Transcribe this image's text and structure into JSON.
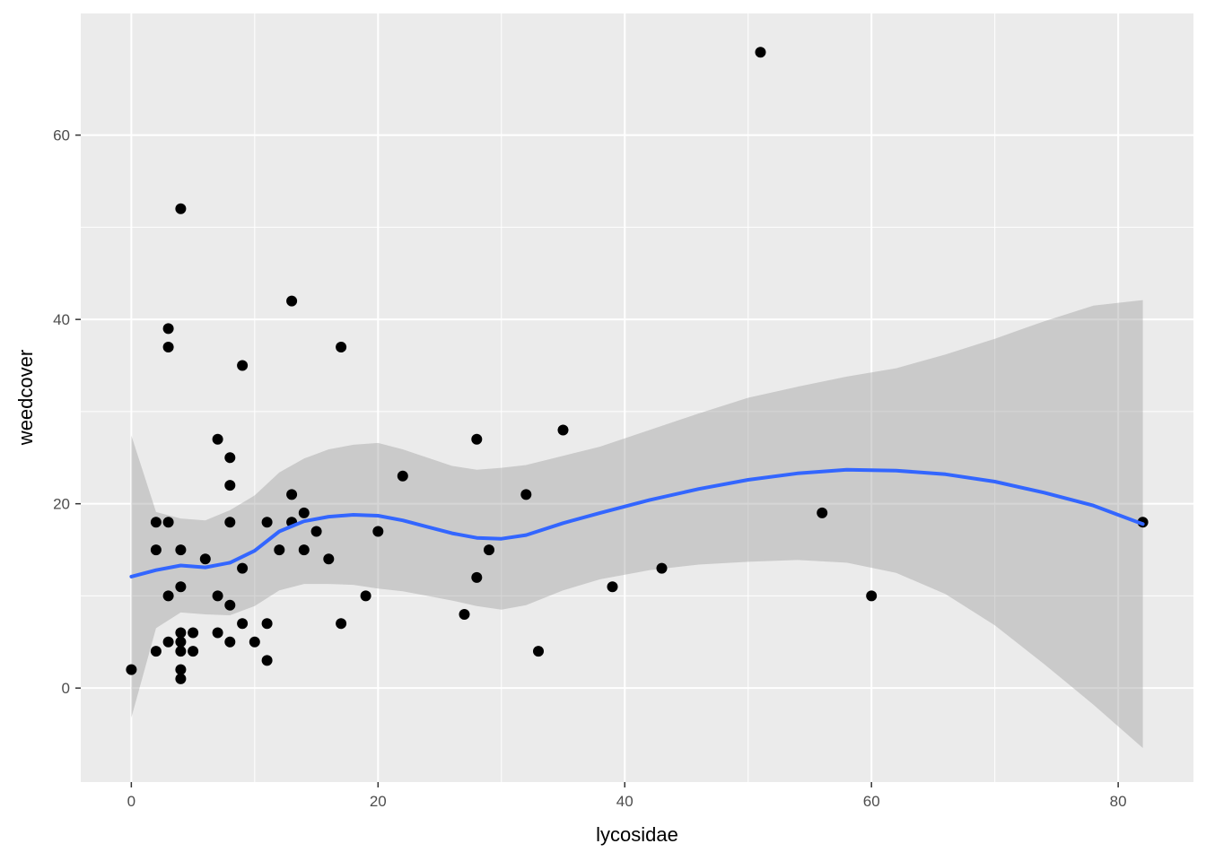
{
  "chart_data": {
    "type": "scatter",
    "xlabel": "lycosidae",
    "ylabel": "weedcover",
    "xlim": [
      -4.1,
      86.1
    ],
    "ylim": [
      -10.2,
      73.2
    ],
    "x_ticks": [
      0,
      20,
      40,
      60,
      80
    ],
    "y_ticks": [
      0,
      20,
      40,
      60
    ],
    "x_tick_labels": [
      "0",
      "20",
      "40",
      "60",
      "80"
    ],
    "y_tick_labels": [
      "0",
      "20",
      "40",
      "60"
    ],
    "grid": true,
    "colors": {
      "panel": "#ebebeb",
      "grid": "#ffffff",
      "points": "#000000",
      "smooth_line": "#3366ff",
      "ribbon": "#999999"
    },
    "points": [
      [
        0,
        2
      ],
      [
        2,
        4
      ],
      [
        2,
        15
      ],
      [
        2,
        18
      ],
      [
        3,
        5
      ],
      [
        3,
        10
      ],
      [
        3,
        18
      ],
      [
        3,
        37
      ],
      [
        3,
        39
      ],
      [
        4,
        1
      ],
      [
        4,
        2
      ],
      [
        4,
        4
      ],
      [
        4,
        5
      ],
      [
        4,
        6
      ],
      [
        4,
        11
      ],
      [
        4,
        15
      ],
      [
        4,
        52
      ],
      [
        5,
        4
      ],
      [
        5,
        6
      ],
      [
        6,
        14
      ],
      [
        7,
        6
      ],
      [
        7,
        10
      ],
      [
        7,
        27
      ],
      [
        8,
        5
      ],
      [
        8,
        9
      ],
      [
        8,
        18
      ],
      [
        8,
        22
      ],
      [
        8,
        25
      ],
      [
        9,
        7
      ],
      [
        9,
        13
      ],
      [
        9,
        35
      ],
      [
        10,
        5
      ],
      [
        11,
        3
      ],
      [
        11,
        7
      ],
      [
        11,
        18
      ],
      [
        12,
        15
      ],
      [
        13,
        18
      ],
      [
        13,
        21
      ],
      [
        13,
        42
      ],
      [
        14,
        15
      ],
      [
        14,
        19
      ],
      [
        15,
        17
      ],
      [
        16,
        14
      ],
      [
        17,
        7
      ],
      [
        17,
        37
      ],
      [
        19,
        10
      ],
      [
        20,
        17
      ],
      [
        22,
        23
      ],
      [
        27,
        8
      ],
      [
        28,
        12
      ],
      [
        28,
        27
      ],
      [
        29,
        15
      ],
      [
        32,
        21
      ],
      [
        33,
        4
      ],
      [
        35,
        28
      ],
      [
        39,
        11
      ],
      [
        43,
        13
      ],
      [
        51,
        69
      ],
      [
        56,
        19
      ],
      [
        60,
        10
      ],
      [
        82,
        18
      ]
    ],
    "smooth": {
      "method": "loess",
      "se": true,
      "x": [
        0,
        2,
        4,
        6,
        8,
        10,
        12,
        14,
        16,
        18,
        20,
        22,
        24,
        26,
        28,
        30,
        32,
        35,
        38,
        42,
        46,
        50,
        54,
        58,
        62,
        66,
        70,
        74,
        78,
        82
      ],
      "y": [
        12.1,
        12.8,
        13.3,
        13.1,
        13.6,
        14.9,
        17.0,
        18.1,
        18.6,
        18.8,
        18.7,
        18.2,
        17.5,
        16.8,
        16.3,
        16.2,
        16.6,
        17.9,
        19.0,
        20.4,
        21.6,
        22.6,
        23.3,
        23.7,
        23.6,
        23.2,
        22.4,
        21.2,
        19.8,
        17.8
      ],
      "lower": [
        -3.2,
        6.5,
        8.2,
        8.0,
        7.9,
        8.9,
        10.6,
        11.3,
        11.3,
        11.2,
        10.8,
        10.5,
        10.0,
        9.5,
        8.9,
        8.5,
        9.0,
        10.6,
        11.8,
        12.8,
        13.4,
        13.7,
        13.9,
        13.6,
        12.5,
        10.2,
        6.8,
        2.6,
        -1.8,
        -6.5
      ],
      "upper": [
        27.4,
        19.1,
        18.4,
        18.2,
        19.3,
        20.9,
        23.4,
        24.9,
        25.9,
        26.4,
        26.6,
        25.9,
        25.0,
        24.1,
        23.7,
        23.9,
        24.2,
        25.2,
        26.2,
        28.0,
        29.8,
        31.5,
        32.7,
        33.8,
        34.7,
        36.2,
        37.9,
        39.8,
        41.5,
        42.1
      ]
    }
  }
}
